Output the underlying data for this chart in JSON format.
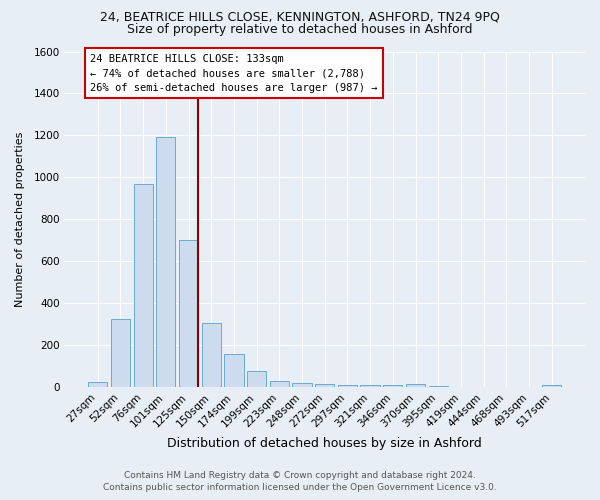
{
  "title1": "24, BEATRICE HILLS CLOSE, KENNINGTON, ASHFORD, TN24 9PQ",
  "title2": "Size of property relative to detached houses in Ashford",
  "xlabel": "Distribution of detached houses by size in Ashford",
  "ylabel": "Number of detached properties",
  "footer1": "Contains HM Land Registry data © Crown copyright and database right 2024.",
  "footer2": "Contains public sector information licensed under the Open Government Licence v3.0.",
  "annotation_line1": "24 BEATRICE HILLS CLOSE: 133sqm",
  "annotation_line2": "← 74% of detached houses are smaller (2,788)",
  "annotation_line3": "26% of semi-detached houses are larger (987) →",
  "bar_labels": [
    "27sqm",
    "52sqm",
    "76sqm",
    "101sqm",
    "125sqm",
    "150sqm",
    "174sqm",
    "199sqm",
    "223sqm",
    "248sqm",
    "272sqm",
    "297sqm",
    "321sqm",
    "346sqm",
    "370sqm",
    "395sqm",
    "419sqm",
    "444sqm",
    "468sqm",
    "493sqm",
    "517sqm"
  ],
  "bar_values": [
    25,
    325,
    970,
    1190,
    700,
    305,
    155,
    75,
    30,
    20,
    13,
    10,
    8,
    10,
    13,
    5,
    0,
    0,
    0,
    0,
    10
  ],
  "bar_color": "#ccdcee",
  "bar_edge_color": "#6aaad4",
  "vline_color": "#8b0000",
  "vline_x": 4.42,
  "ylim": [
    0,
    1600
  ],
  "yticks": [
    0,
    200,
    400,
    600,
    800,
    1000,
    1200,
    1400,
    1600
  ],
  "bg_color": "#e8eef5",
  "grid_color": "#ffffff",
  "annotation_box_facecolor": "#ffffff",
  "annotation_box_edge": "#cc0000",
  "title1_fontsize": 9,
  "title2_fontsize": 9,
  "xlabel_fontsize": 9,
  "ylabel_fontsize": 8,
  "tick_fontsize": 7.5,
  "annotation_fontsize": 7.5,
  "footer_fontsize": 6.5
}
